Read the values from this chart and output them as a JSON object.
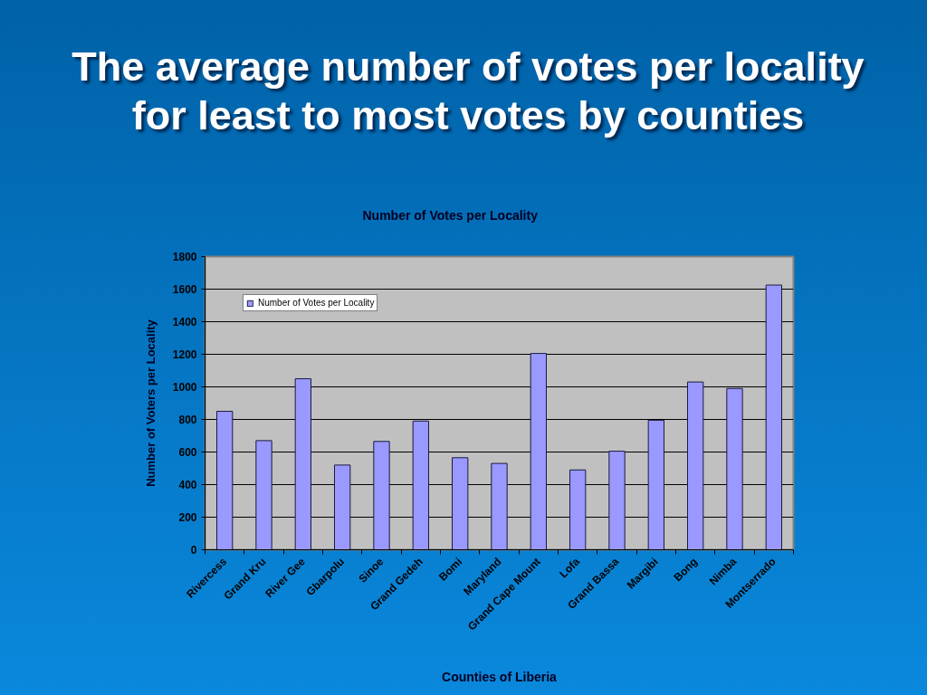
{
  "chart_data": {
    "type": "bar",
    "title": "The average number of votes per locality for least to most votes by counties",
    "subtitle": "Number of Votes per Locality",
    "xlabel": "Counties of Liberia",
    "ylabel": "Number of Voters per Locality",
    "categories": [
      "Rivercess",
      "Grand Kru",
      "River Gee",
      "Gbarpolu",
      "Sinoe",
      "Grand Gedeh",
      "Bomi",
      "Maryland",
      "Grand Cape Mount",
      "Lofa",
      "Grand Bassa",
      "Margibi",
      "Bong",
      "Nimba",
      "Montserrado"
    ],
    "series": [
      {
        "name": "Number of Votes per Locality",
        "color": "#9999ff",
        "values": [
          850,
          670,
          1050,
          520,
          665,
          790,
          565,
          530,
          1205,
          490,
          605,
          795,
          1030,
          990,
          1625
        ]
      }
    ],
    "ylim": [
      0,
      1800
    ],
    "yticks": [
      0,
      200,
      400,
      600,
      800,
      1000,
      1200,
      1400,
      1600,
      1800
    ],
    "grid": "y",
    "legend": "top left"
  }
}
